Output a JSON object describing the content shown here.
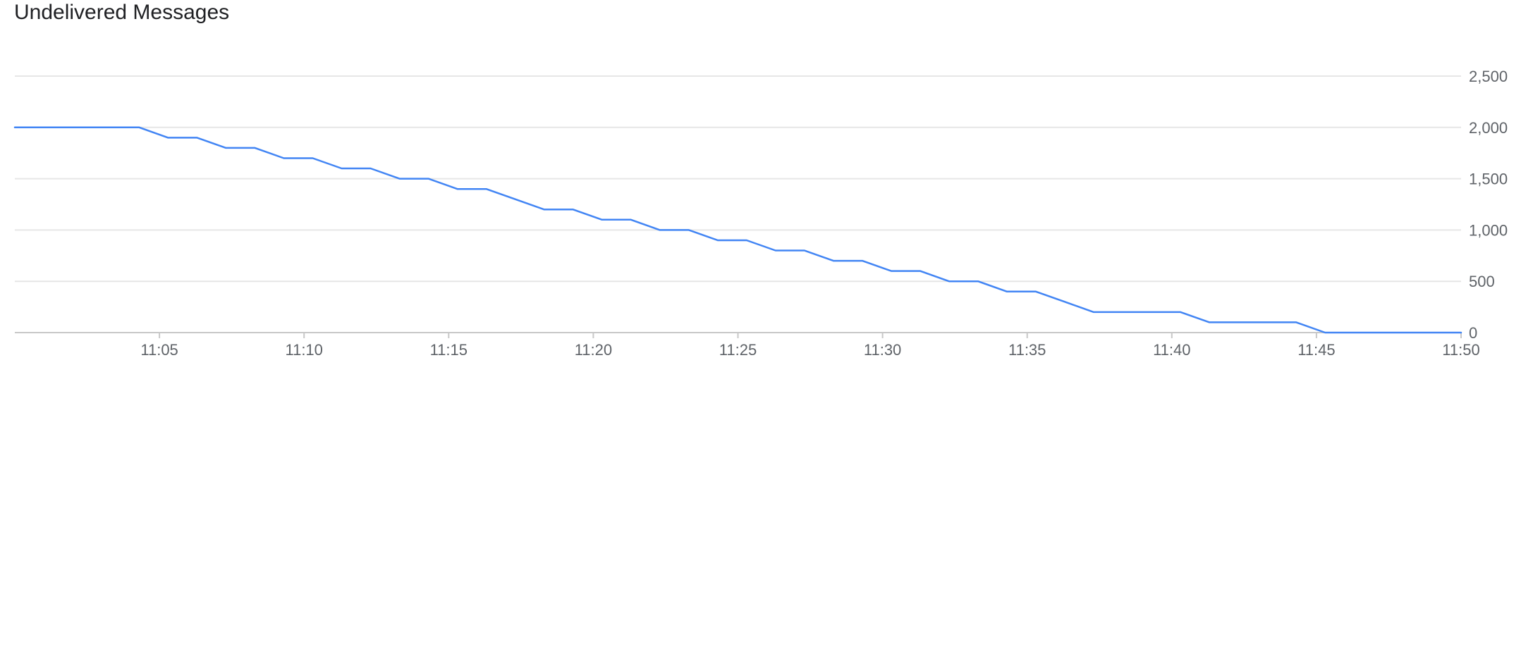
{
  "chart_data": {
    "type": "line",
    "title": "Undelivered Messages",
    "xlabel": "",
    "ylabel": "",
    "x_ticks": [
      "11:05",
      "11:10",
      "11:15",
      "11:20",
      "11:25",
      "11:30",
      "11:35",
      "11:40",
      "11:45",
      "11:50"
    ],
    "x_tick_minutes": [
      5,
      10,
      15,
      20,
      25,
      30,
      35,
      40,
      45,
      50
    ],
    "xlim": [
      0,
      50
    ],
    "y_ticks": [
      "0",
      "500",
      "1,000",
      "1,500",
      "2,000",
      "2,500"
    ],
    "y_tick_values": [
      0,
      500,
      1000,
      1500,
      2000,
      2500
    ],
    "ylim": [
      0,
      2500
    ],
    "grid": true,
    "series": [
      {
        "color": "#4285f4",
        "x": [
          0,
          4.3,
          5.3,
          6.3,
          7.3,
          8.3,
          9.3,
          10.3,
          11.3,
          12.3,
          13.3,
          14.3,
          15.3,
          16.3,
          17.3,
          18.3,
          19.3,
          20.3,
          21.3,
          22.3,
          23.3,
          24.3,
          25.3,
          26.3,
          27.3,
          28.3,
          29.3,
          30.3,
          31.3,
          32.3,
          33.3,
          34.3,
          35.3,
          36.3,
          37.3,
          40.3,
          41.3,
          44.3,
          45.3,
          50
        ],
        "y": [
          2000,
          2000,
          1900,
          1900,
          1800,
          1800,
          1700,
          1700,
          1600,
          1600,
          1500,
          1500,
          1400,
          1400,
          1300,
          1200,
          1200,
          1100,
          1100,
          1000,
          1000,
          900,
          900,
          800,
          800,
          700,
          700,
          600,
          600,
          500,
          500,
          400,
          400,
          300,
          200,
          200,
          100,
          100,
          0,
          0
        ]
      }
    ]
  }
}
